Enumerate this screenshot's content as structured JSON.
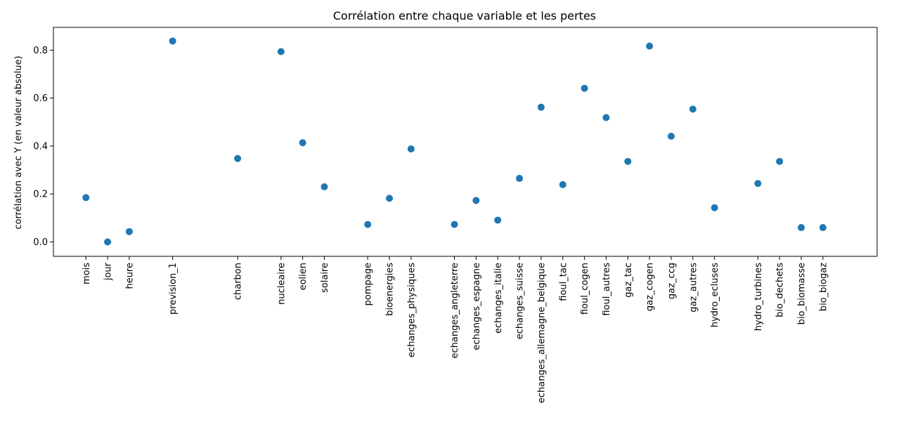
{
  "chart_data": {
    "type": "scatter",
    "title": "Corrélation entre chaque variable et les pertes",
    "xlabel": "",
    "ylabel": "corrélation avec Y (en valeur absolue)",
    "ylim": [
      -0.06,
      0.895
    ],
    "yticks": [
      "0.0",
      "0.2",
      "0.4",
      "0.6",
      "0.8"
    ],
    "ytick_values": [
      0.0,
      0.2,
      0.4,
      0.6,
      0.8
    ],
    "grid": false,
    "legend": "none",
    "marker_color": "#1f77b4",
    "xlim": [
      -1.5,
      36.5
    ],
    "points": [
      {
        "label": "mois",
        "x": 0,
        "y": 0.185
      },
      {
        "label": "jour",
        "x": 1,
        "y": 0.0
      },
      {
        "label": "heure",
        "x": 2,
        "y": 0.043
      },
      {
        "label": "prevision_1",
        "x": 4,
        "y": 0.838
      },
      {
        "label": "charbon",
        "x": 7,
        "y": 0.348
      },
      {
        "label": "nucleaire",
        "x": 9,
        "y": 0.794
      },
      {
        "label": "eolien",
        "x": 10,
        "y": 0.414
      },
      {
        "label": "solaire",
        "x": 11,
        "y": 0.23
      },
      {
        "label": "pompage",
        "x": 13,
        "y": 0.073
      },
      {
        "label": "bioenergies",
        "x": 14,
        "y": 0.182
      },
      {
        "label": "echanges_physiques",
        "x": 15,
        "y": 0.388
      },
      {
        "label": "echanges_angleterre",
        "x": 17,
        "y": 0.073
      },
      {
        "label": "echanges_espagne",
        "x": 18,
        "y": 0.173
      },
      {
        "label": "echanges_italie",
        "x": 19,
        "y": 0.091
      },
      {
        "label": "echanges_suisse",
        "x": 20,
        "y": 0.265
      },
      {
        "label": "echanges_allemagne_belgique",
        "x": 21,
        "y": 0.562
      },
      {
        "label": "fioul_tac",
        "x": 22,
        "y": 0.239
      },
      {
        "label": "fioul_cogen",
        "x": 23,
        "y": 0.641
      },
      {
        "label": "fioul_autres",
        "x": 24,
        "y": 0.519
      },
      {
        "label": "gaz_tac",
        "x": 25,
        "y": 0.336
      },
      {
        "label": "gaz_cogen",
        "x": 26,
        "y": 0.817
      },
      {
        "label": "gaz_ccg",
        "x": 27,
        "y": 0.441
      },
      {
        "label": "gaz_autres",
        "x": 28,
        "y": 0.554
      },
      {
        "label": "hydro_ecluses",
        "x": 29,
        "y": 0.143
      },
      {
        "label": "hydro_turbines",
        "x": 31,
        "y": 0.244
      },
      {
        "label": "bio_dechets",
        "x": 32,
        "y": 0.336
      },
      {
        "label": "bio_biomasse",
        "x": 33,
        "y": 0.06
      },
      {
        "label": "bio_biogaz",
        "x": 34,
        "y": 0.06
      }
    ]
  }
}
